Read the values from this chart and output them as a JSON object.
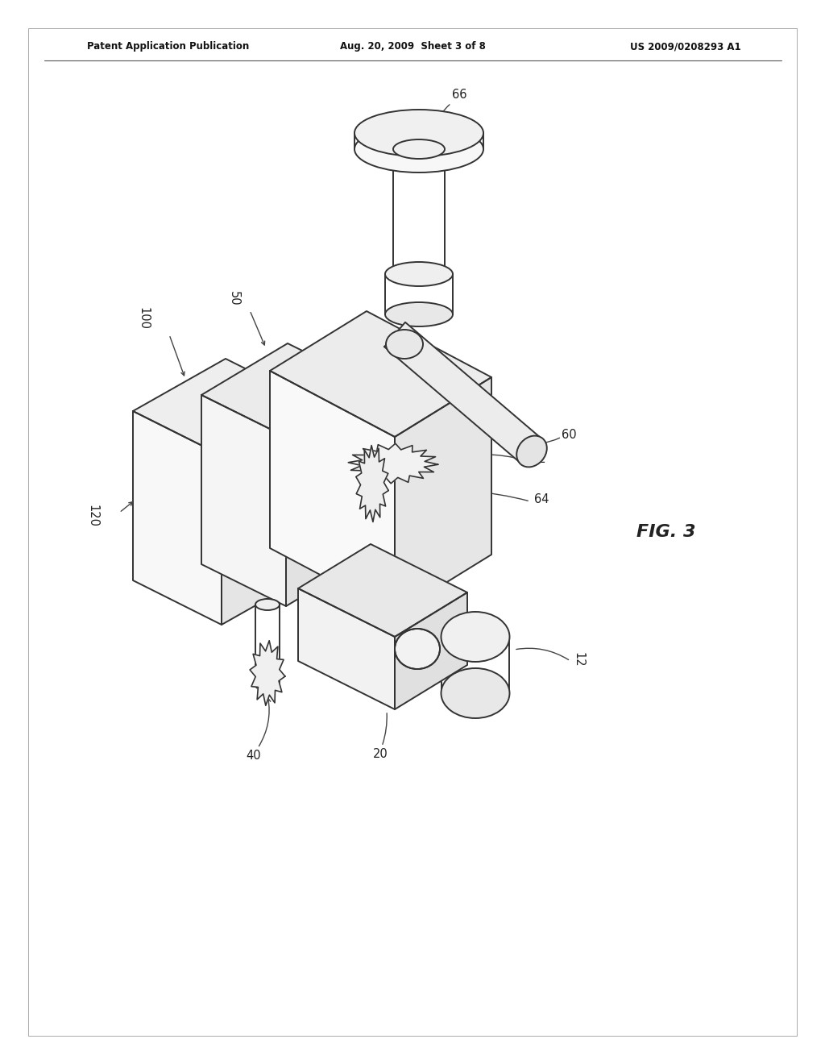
{
  "bg_color": "#ffffff",
  "line_color": "#333333",
  "header_left": "Patent Application Publication",
  "header_center": "Aug. 20, 2009  Sheet 3 of 8",
  "header_right": "US 2009/0208293 A1",
  "fig_label": "FIG. 3",
  "label_fontsize": 10.5
}
